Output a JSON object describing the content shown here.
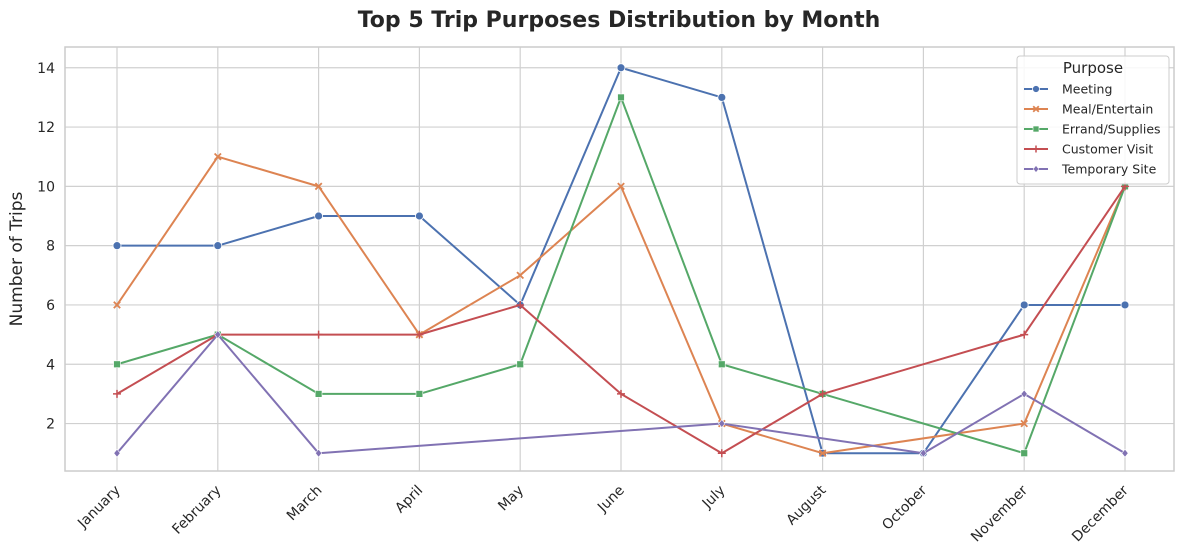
{
  "chart_data": {
    "type": "line",
    "title": "Top 5 Trip Purposes Distribution by Month",
    "xlabel": "",
    "ylabel": "Number of Trips",
    "categories": [
      "January",
      "February",
      "March",
      "April",
      "May",
      "June",
      "July",
      "August",
      "October",
      "November",
      "December"
    ],
    "ylim": [
      0.4,
      14.7
    ],
    "yticks": [
      2,
      4,
      6,
      8,
      10,
      12,
      14
    ],
    "grid": true,
    "legend": {
      "title": "Purpose",
      "placement": "top-right"
    },
    "series": [
      {
        "name": "Meeting",
        "color": "#4c72b0",
        "marker": "circle",
        "values": [
          8,
          8,
          9,
          9,
          6,
          14,
          13,
          1,
          1,
          6,
          6
        ]
      },
      {
        "name": "Meal/Entertain",
        "color": "#dd8452",
        "marker": "x",
        "values": [
          6,
          11,
          10,
          5,
          7,
          10,
          2,
          1,
          null,
          2,
          10
        ]
      },
      {
        "name": "Errand/Supplies",
        "color": "#55a868",
        "marker": "square",
        "values": [
          4,
          5,
          3,
          3,
          4,
          13,
          4,
          3,
          null,
          1,
          10
        ]
      },
      {
        "name": "Customer Visit",
        "color": "#c44e52",
        "marker": "plus",
        "values": [
          3,
          5,
          5,
          5,
          6,
          3,
          1,
          3,
          null,
          5,
          10
        ]
      },
      {
        "name": "Temporary Site",
        "color": "#8172b3",
        "marker": "diamond",
        "values": [
          1,
          5,
          1,
          null,
          null,
          null,
          2,
          null,
          1,
          3,
          1
        ]
      }
    ]
  }
}
